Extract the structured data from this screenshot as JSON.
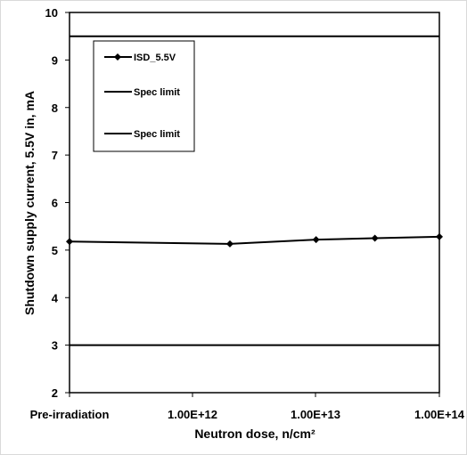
{
  "chart_data": {
    "type": "line",
    "xlabel": "Neutron dose, n/cm²",
    "ylabel": "Shutdown supply current, 5.5V in, mA",
    "x_tick_labels": [
      "Pre-irradiation",
      "1.00E+12",
      "1.00E+13",
      "1.00E+14"
    ],
    "x_scale": "log",
    "y_ticks": [
      2,
      3,
      4,
      5,
      6,
      7,
      8,
      9,
      10
    ],
    "ylim": [
      2,
      10
    ],
    "grid": false,
    "legend_position": "top-left",
    "series": [
      {
        "name": "ISD_5.5V",
        "marker": "diamond",
        "color": "#000000",
        "x": [
          "Pre-irradiation",
          2000000000000.0,
          10000000000000.0,
          30000000000000.0,
          100000000000000.0
        ],
        "values": [
          5.18,
          5.13,
          5.22,
          5.25,
          5.28
        ]
      },
      {
        "name": "Spec limit",
        "color": "#000000",
        "constant": 9.5
      },
      {
        "name": "Spec limit",
        "color": "#000000",
        "constant": 3.0
      }
    ]
  }
}
